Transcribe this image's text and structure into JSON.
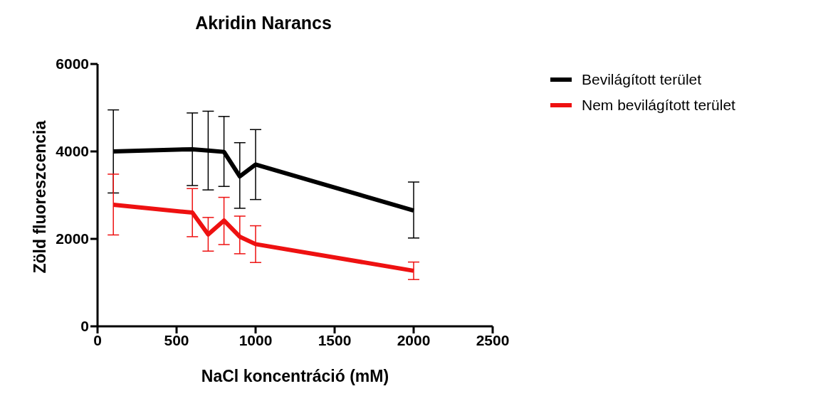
{
  "chart_data": {
    "type": "line",
    "title": "Akridin  Narancs",
    "xlabel": "NaCl koncentráció (mM)",
    "ylabel": "Zöld fluoreszcencia",
    "x": [
      100,
      600,
      700,
      800,
      900,
      1000,
      2000
    ],
    "series": [
      {
        "name": "Bevilágított terület",
        "color": "#000000",
        "values": [
          4000,
          4050,
          4020,
          3990,
          3430,
          3700,
          2650
        ],
        "errors": [
          [
            3050,
            4950
          ],
          [
            3220,
            4880
          ],
          [
            3120,
            4920
          ],
          [
            3200,
            4800
          ],
          [
            2700,
            4200
          ],
          [
            2900,
            4500
          ],
          [
            2020,
            3300
          ]
        ]
      },
      {
        "name": "Nem bevilágított terület",
        "color": "#ee1111",
        "values": [
          2780,
          2600,
          2100,
          2420,
          2050,
          1880,
          1270
        ],
        "errors": [
          [
            2090,
            3480
          ],
          [
            2050,
            3150
          ],
          [
            1720,
            2490
          ],
          [
            1870,
            2950
          ],
          [
            1660,
            2520
          ],
          [
            1460,
            2300
          ],
          [
            1070,
            1470
          ]
        ]
      }
    ],
    "xlim": [
      0,
      2500
    ],
    "xticks": [
      0,
      500,
      1000,
      1500,
      2000,
      2500
    ],
    "ylim": [
      0,
      6000
    ],
    "yticks": [
      0,
      2000,
      4000,
      6000
    ],
    "grid": false,
    "legend": "right",
    "marker": "none",
    "line_style": "solid"
  }
}
